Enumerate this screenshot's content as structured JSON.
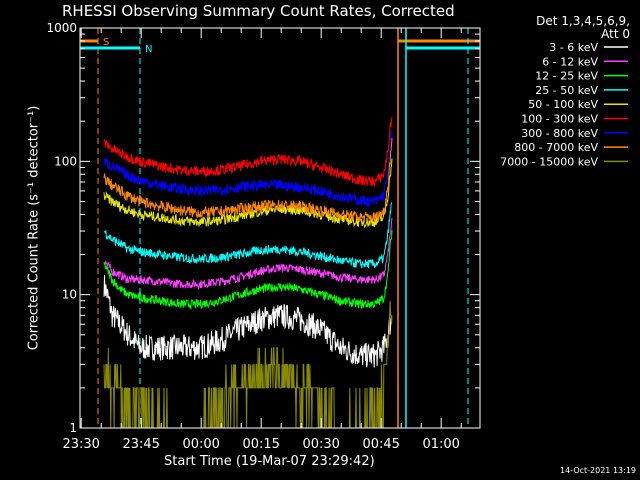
{
  "chart_data": {
    "type": "line",
    "title": "RHESSI Observing Summary Count Rates, Corrected",
    "xlabel": "Start Time (19-Mar-07 23:29:42)",
    "ylabel": "Corrected Count Rate (s⁻¹ detector⁻¹)",
    "ylim": [
      1,
      1000
    ],
    "yscale": "log",
    "y_ticks": [
      "1",
      "10",
      "100",
      "1000"
    ],
    "x_ticks": [
      {
        "t": 0.3,
        "label": "23:30"
      },
      {
        "t": 15.3,
        "label": "23:45"
      },
      {
        "t": 30.3,
        "label": "00:00"
      },
      {
        "t": 45.3,
        "label": "00:15"
      },
      {
        "t": 60.3,
        "label": "00:30"
      },
      {
        "t": 75.3,
        "label": "00:45"
      },
      {
        "t": 90.3,
        "label": "01:00"
      }
    ],
    "xlim_minutes": [
      0,
      100
    ],
    "legend": {
      "header": [
        "Det 1,3,4,5,6,9,",
        "Att 0"
      ],
      "placement": "right"
    },
    "series": [
      {
        "name": "3 - 6 keV",
        "color": "#ffffff",
        "x": [
          6,
          8,
          10,
          12,
          15,
          20,
          25,
          30,
          35,
          40,
          45,
          50,
          55,
          60,
          65,
          70,
          72,
          74,
          76,
          77,
          78
        ],
        "y": [
          12,
          7,
          6,
          5,
          4,
          4,
          4,
          4,
          4.5,
          5.5,
          6.5,
          7,
          6.5,
          5.5,
          4,
          3.5,
          3.5,
          3.5,
          4,
          5,
          7
        ]
      },
      {
        "name": "6 - 12 keV",
        "color": "#ff40ff",
        "x": [
          6,
          8,
          10,
          12,
          15,
          20,
          25,
          30,
          35,
          40,
          45,
          50,
          55,
          60,
          65,
          70,
          72,
          74,
          76,
          77,
          78
        ],
        "y": [
          18,
          15,
          14,
          13,
          13,
          12.5,
          12,
          12,
          12.5,
          13.5,
          15,
          16,
          15.5,
          14.5,
          13.5,
          13,
          13,
          13,
          14,
          20,
          35
        ]
      },
      {
        "name": "12 - 25 keV",
        "color": "#00ff00",
        "x": [
          6,
          8,
          10,
          12,
          15,
          20,
          25,
          30,
          35,
          40,
          45,
          50,
          55,
          60,
          65,
          70,
          72,
          74,
          76,
          77,
          78
        ],
        "y": [
          17,
          13,
          11,
          10,
          9.5,
          9,
          8.5,
          8.5,
          9,
          10,
          11,
          11.5,
          11,
          10,
          9,
          8.5,
          8.5,
          8.5,
          9.5,
          14,
          30
        ]
      },
      {
        "name": "25 - 50 keV",
        "color": "#00ffff",
        "x": [
          6,
          8,
          10,
          12,
          15,
          20,
          25,
          30,
          35,
          40,
          45,
          50,
          55,
          60,
          65,
          70,
          72,
          74,
          76,
          77,
          78
        ],
        "y": [
          30,
          26,
          24,
          22,
          21,
          20,
          19,
          18.5,
          19,
          20,
          21.5,
          22,
          21,
          19.5,
          18,
          17,
          17,
          17,
          19,
          28,
          50
        ]
      },
      {
        "name": "50 - 100 keV",
        "color": "#e8e800",
        "x": [
          6,
          8,
          10,
          12,
          15,
          20,
          25,
          30,
          35,
          40,
          45,
          50,
          55,
          60,
          65,
          70,
          72,
          74,
          76,
          77,
          78
        ],
        "y": [
          55,
          50,
          46,
          43,
          40,
          38,
          36,
          35,
          36,
          39,
          42,
          44,
          43,
          40,
          37,
          35,
          35,
          35,
          38,
          55,
          100
        ]
      },
      {
        "name": "100 - 300 keV",
        "color": "#ff0000",
        "x": [
          6,
          8,
          10,
          12,
          15,
          20,
          25,
          30,
          35,
          40,
          45,
          50,
          55,
          60,
          65,
          70,
          72,
          74,
          76,
          77,
          78
        ],
        "y": [
          138,
          125,
          115,
          108,
          100,
          92,
          86,
          84,
          86,
          92,
          100,
          104,
          100,
          90,
          80,
          72,
          71,
          71,
          80,
          120,
          220
        ]
      },
      {
        "name": "300 - 800 keV",
        "color": "#0000ff",
        "x": [
          6,
          8,
          10,
          12,
          15,
          20,
          25,
          30,
          35,
          40,
          45,
          50,
          55,
          60,
          65,
          70,
          72,
          74,
          76,
          77,
          78
        ],
        "y": [
          100,
          92,
          85,
          78,
          72,
          66,
          62,
          60,
          61,
          64,
          66,
          66,
          64,
          60,
          55,
          51,
          50,
          50,
          56,
          85,
          170
        ]
      },
      {
        "name": "800 - 7000 keV",
        "color": "#ff8800",
        "x": [
          6,
          8,
          10,
          12,
          15,
          20,
          25,
          30,
          35,
          40,
          45,
          50,
          55,
          60,
          65,
          70,
          72,
          74,
          76,
          77,
          78
        ],
        "y": [
          75,
          66,
          60,
          55,
          50,
          46,
          43,
          41,
          42,
          44,
          46,
          47,
          46,
          43,
          40,
          38,
          38,
          38,
          42,
          65,
          140
        ]
      },
      {
        "name": "7000 - 15000 keV",
        "color": "#8a8a00",
        "x": [
          6,
          8,
          10,
          12,
          15,
          20,
          25,
          30,
          35,
          40,
          45,
          50,
          55,
          60,
          65,
          70,
          72,
          74,
          76,
          77,
          78
        ],
        "y": [
          3,
          2,
          2,
          1.5,
          1.5,
          1,
          1,
          1,
          1.5,
          2,
          2.5,
          2.5,
          2,
          1.5,
          1,
          1,
          1.2,
          1.5,
          2,
          4,
          9
        ]
      }
    ],
    "flags": [
      {
        "label": "S",
        "color": "#ff8800",
        "row": "upper",
        "x_start": 0,
        "x_end": 4.5,
        "dashed_at": 4.5
      },
      {
        "label": "N",
        "color": "#00ffff",
        "row": "lower",
        "x_start": 0,
        "x_end": 15,
        "dashed_at": 15
      },
      {
        "label": "",
        "color": "#ff8800",
        "row": "upper",
        "x_start": 79.5,
        "x_end": 100,
        "solid_at": 79.5,
        "dashed_at": 97
      },
      {
        "label": "",
        "color": "#00ffff",
        "row": "lower",
        "x_start": 81.5,
        "x_end": 100,
        "solid_at": 81.5,
        "dashed_at": 97
      }
    ],
    "grid": false
  },
  "footer": "14-Oct-2021 13:19"
}
